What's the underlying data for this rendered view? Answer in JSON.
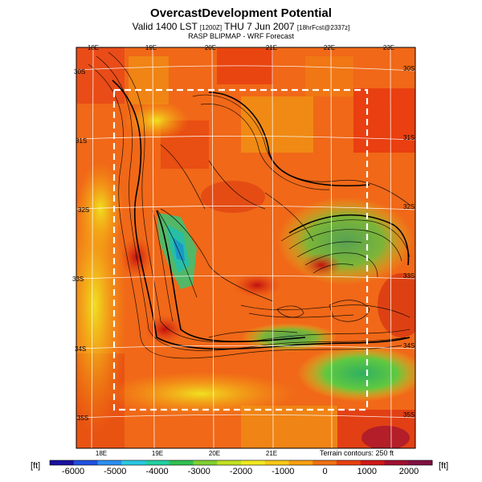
{
  "title": {
    "main": "OvercastDevelopment Potential",
    "valid_prefix": "Valid 1400 LST",
    "valid_small": "[1200Z]",
    "valid_date": "THU 7 Jun 2007",
    "valid_suffix": "[18hrFcst@2337z]",
    "subtitle": "RASP BLIPMAP - WRF Forecast"
  },
  "map": {
    "lon_labels_top": [
      "18E",
      "19E",
      "20E",
      "21E",
      "22E",
      "23E"
    ],
    "lon_labels_bottom": [
      "18E",
      "19E",
      "20E",
      "21E"
    ],
    "lat_labels_left": [
      "30S",
      "31S",
      "32S",
      "33S",
      "34S",
      "35S"
    ],
    "lat_labels_right": [
      "30S",
      "31S",
      "32S",
      "33S",
      "34S",
      "35S"
    ],
    "terrain_note": "Terrain contours: 250 ft"
  },
  "colorbar": {
    "unit_left": "[ft]",
    "unit_right": "[ft]",
    "tick_labels": [
      "-6000",
      "-5000",
      "-4000",
      "-3000",
      "-2000",
      "-1000",
      "0",
      "1000",
      "2000"
    ],
    "colors": [
      "#1a10a0",
      "#2050e0",
      "#2a8ef0",
      "#28c8e0",
      "#20d0a0",
      "#30c050",
      "#80d030",
      "#c0e020",
      "#f0e820",
      "#f8c818",
      "#f8a010",
      "#f07010",
      "#e84010",
      "#d01818",
      "#a01030",
      "#801040"
    ]
  }
}
